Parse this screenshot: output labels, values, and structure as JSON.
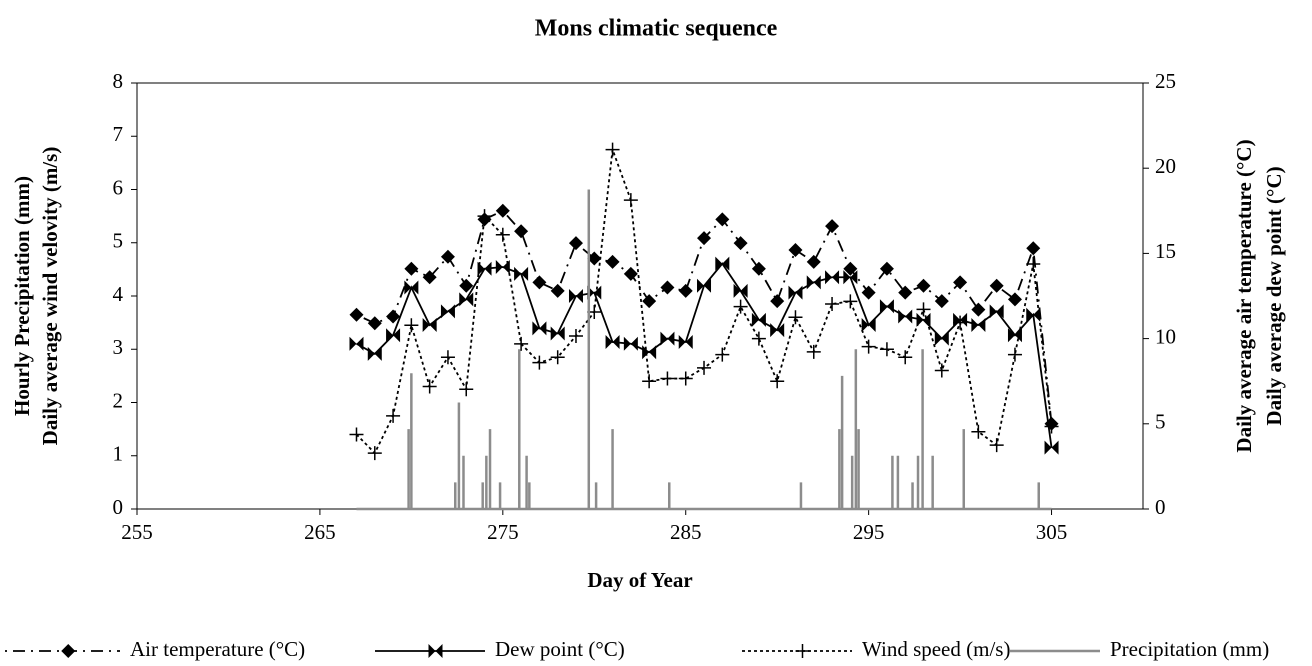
{
  "chart_data": {
    "type": "line",
    "title": "Mons climatic sequence",
    "xlabel": "Day of Year",
    "ylabel": [
      "Hourly Precipitation (mm)",
      "Daily average wind velovity (m/s)"
    ],
    "y2label": [
      "Daily average air temperature (°C)",
      "Daily average dew point (°C)"
    ],
    "xlim": [
      255,
      310
    ],
    "xticks": [
      255,
      265,
      275,
      285,
      295,
      305
    ],
    "ylim": [
      0,
      8
    ],
    "yticks": [
      0,
      1,
      2,
      3,
      4,
      5,
      6,
      7,
      8
    ],
    "y2lim": [
      0,
      25
    ],
    "y2ticks": [
      0,
      5,
      10,
      15,
      20,
      25
    ],
    "legend": "bottom",
    "x": [
      267,
      268,
      269,
      270,
      271,
      272,
      273,
      274,
      275,
      276,
      277,
      278,
      279,
      280,
      281,
      282,
      283,
      284,
      285,
      286,
      287,
      288,
      289,
      290,
      291,
      292,
      293,
      294,
      295,
      296,
      297,
      298,
      299,
      300,
      301,
      302,
      303,
      304,
      305
    ],
    "series": [
      {
        "name": "Air temperature (°C)",
        "color": "#000000",
        "axis": "y2",
        "marker": "diamond",
        "dash": "dashdot",
        "values": [
          11.4,
          10.9,
          11.3,
          14.1,
          13.6,
          14.8,
          13.1,
          17.0,
          17.5,
          16.3,
          13.3,
          12.8,
          15.6,
          14.7,
          14.5,
          13.8,
          12.2,
          13.0,
          12.8,
          15.9,
          17.0,
          15.6,
          14.1,
          12.2,
          15.2,
          14.5,
          16.6,
          14.1,
          12.7,
          14.1,
          12.7,
          13.1,
          12.2,
          13.3,
          11.7,
          13.1,
          12.3,
          15.3,
          5.0
        ]
      },
      {
        "name": "Dew point (°C)",
        "color": "#000000",
        "axis": "y2",
        "marker": "bowtie",
        "dash": "solid",
        "values": [
          9.7,
          9.1,
          10.2,
          13.0,
          10.8,
          11.6,
          12.3,
          14.1,
          14.2,
          13.8,
          10.6,
          10.3,
          12.5,
          12.7,
          9.8,
          9.7,
          9.2,
          10.0,
          9.8,
          13.1,
          14.4,
          12.8,
          11.1,
          10.5,
          12.7,
          13.3,
          13.6,
          13.6,
          10.8,
          11.9,
          11.3,
          11.1,
          10.0,
          11.1,
          10.8,
          11.6,
          10.2,
          11.4,
          3.6
        ]
      },
      {
        "name": "Wind speed (m/s)",
        "color": "#000000",
        "marker": "plus",
        "dash": "dotted",
        "values": [
          1.4,
          1.05,
          1.75,
          3.45,
          2.3,
          2.85,
          2.25,
          5.5,
          5.15,
          3.1,
          2.75,
          2.85,
          3.25,
          3.7,
          6.75,
          5.8,
          2.4,
          2.45,
          2.45,
          2.65,
          2.9,
          3.8,
          3.2,
          2.4,
          3.6,
          2.95,
          3.85,
          3.9,
          3.05,
          3.0,
          2.85,
          3.75,
          2.6,
          3.5,
          1.45,
          1.2,
          2.9,
          4.6,
          1.55
        ]
      },
      {
        "name": "Precipitation (mm)",
        "color": "#8c8c8c",
        "marker": "none",
        "dash": "solid",
        "x": [
          267,
          269.85,
          269.85,
          269.85,
          270,
          270,
          270,
          272.4,
          272.4,
          272.4,
          272.6,
          272.6,
          272.6,
          272.85,
          272.85,
          272.85,
          273.9,
          273.9,
          273.9,
          274.1,
          274.1,
          274.1,
          274.3,
          274.3,
          274.3,
          274.85,
          274.85,
          274.85,
          275.9,
          275.9,
          275.9,
          276.3,
          276.3,
          276.3,
          276.45,
          276.45,
          276.45,
          279.7,
          279.7,
          279.7,
          280.1,
          280.1,
          280.1,
          281,
          281,
          281,
          284.1,
          284.1,
          284.1,
          291.3,
          291.3,
          291.3,
          293.4,
          293.4,
          293.4,
          293.55,
          293.55,
          293.55,
          294.1,
          294.1,
          294.1,
          294.3,
          294.3,
          294.3,
          294.45,
          294.45,
          294.45,
          296.3,
          296.3,
          296.3,
          296.6,
          296.6,
          296.6,
          297.4,
          297.4,
          297.4,
          297.7,
          297.7,
          297.7,
          297.95,
          297.95,
          297.95,
          298.5,
          298.5,
          298.5,
          300.2,
          300.2,
          300.2,
          304.3,
          304.3,
          304.3,
          305
        ],
        "values": [
          0,
          0,
          1.5,
          0,
          0,
          2.55,
          0,
          0,
          0.5,
          0,
          0,
          2,
          0,
          0,
          1,
          0,
          0,
          0.5,
          0,
          0,
          1,
          0,
          0,
          1.5,
          0,
          0,
          0.5,
          0,
          0,
          3,
          0,
          0,
          1,
          0,
          0,
          0.5,
          0,
          0,
          6,
          0,
          0,
          0.5,
          0,
          0,
          1.5,
          0,
          0,
          0.5,
          0,
          0,
          0.5,
          0,
          0,
          1.5,
          0,
          0,
          2.5,
          0,
          0,
          1,
          0,
          0,
          3,
          0,
          0,
          1.5,
          0,
          0,
          1,
          0,
          0,
          1,
          0,
          0,
          0.5,
          0,
          0,
          1,
          0,
          0,
          3,
          0,
          0,
          1,
          0,
          0,
          1.5,
          0,
          0,
          0.5,
          0,
          0
        ]
      }
    ]
  }
}
